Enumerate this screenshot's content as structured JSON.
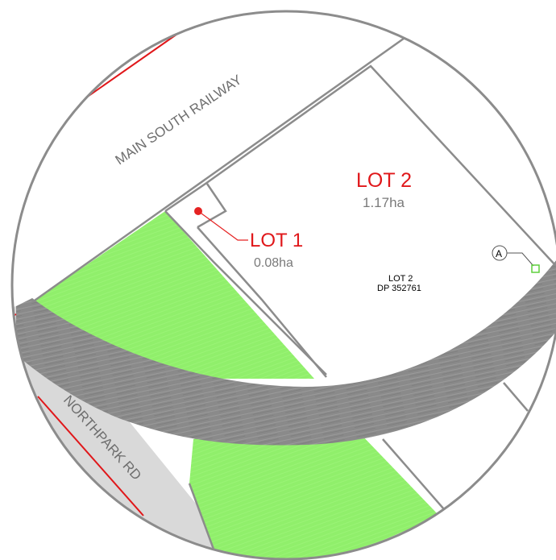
{
  "colors": {
    "background": "#ffffff",
    "lot_label": "#e0171a",
    "area_label": "#7a7a7a",
    "boundary": "#8c8c8c",
    "green_area": "#90ef6b",
    "road_grey": "#8a8a8a",
    "road_light": "#d9d9d9",
    "red_line": "#e0171a",
    "marker_red": "#e52222",
    "marker_green": "#5ecf3c"
  },
  "labels": {
    "railway": "MAIN SOUTH RAILWAY",
    "road": "NORTHPARK RD",
    "lot1": {
      "name": "LOT 1",
      "area": "0.08ha"
    },
    "lot2": {
      "name": "LOT 2",
      "area": "1.17ha"
    },
    "parcel": {
      "line1": "LOT 2",
      "line2": "DP 352761"
    },
    "point_marker": "A"
  },
  "icons": {
    "lot1_marker": "red-dot-icon",
    "point_a": "circle-letter-icon",
    "point_a_box": "green-square-icon"
  }
}
